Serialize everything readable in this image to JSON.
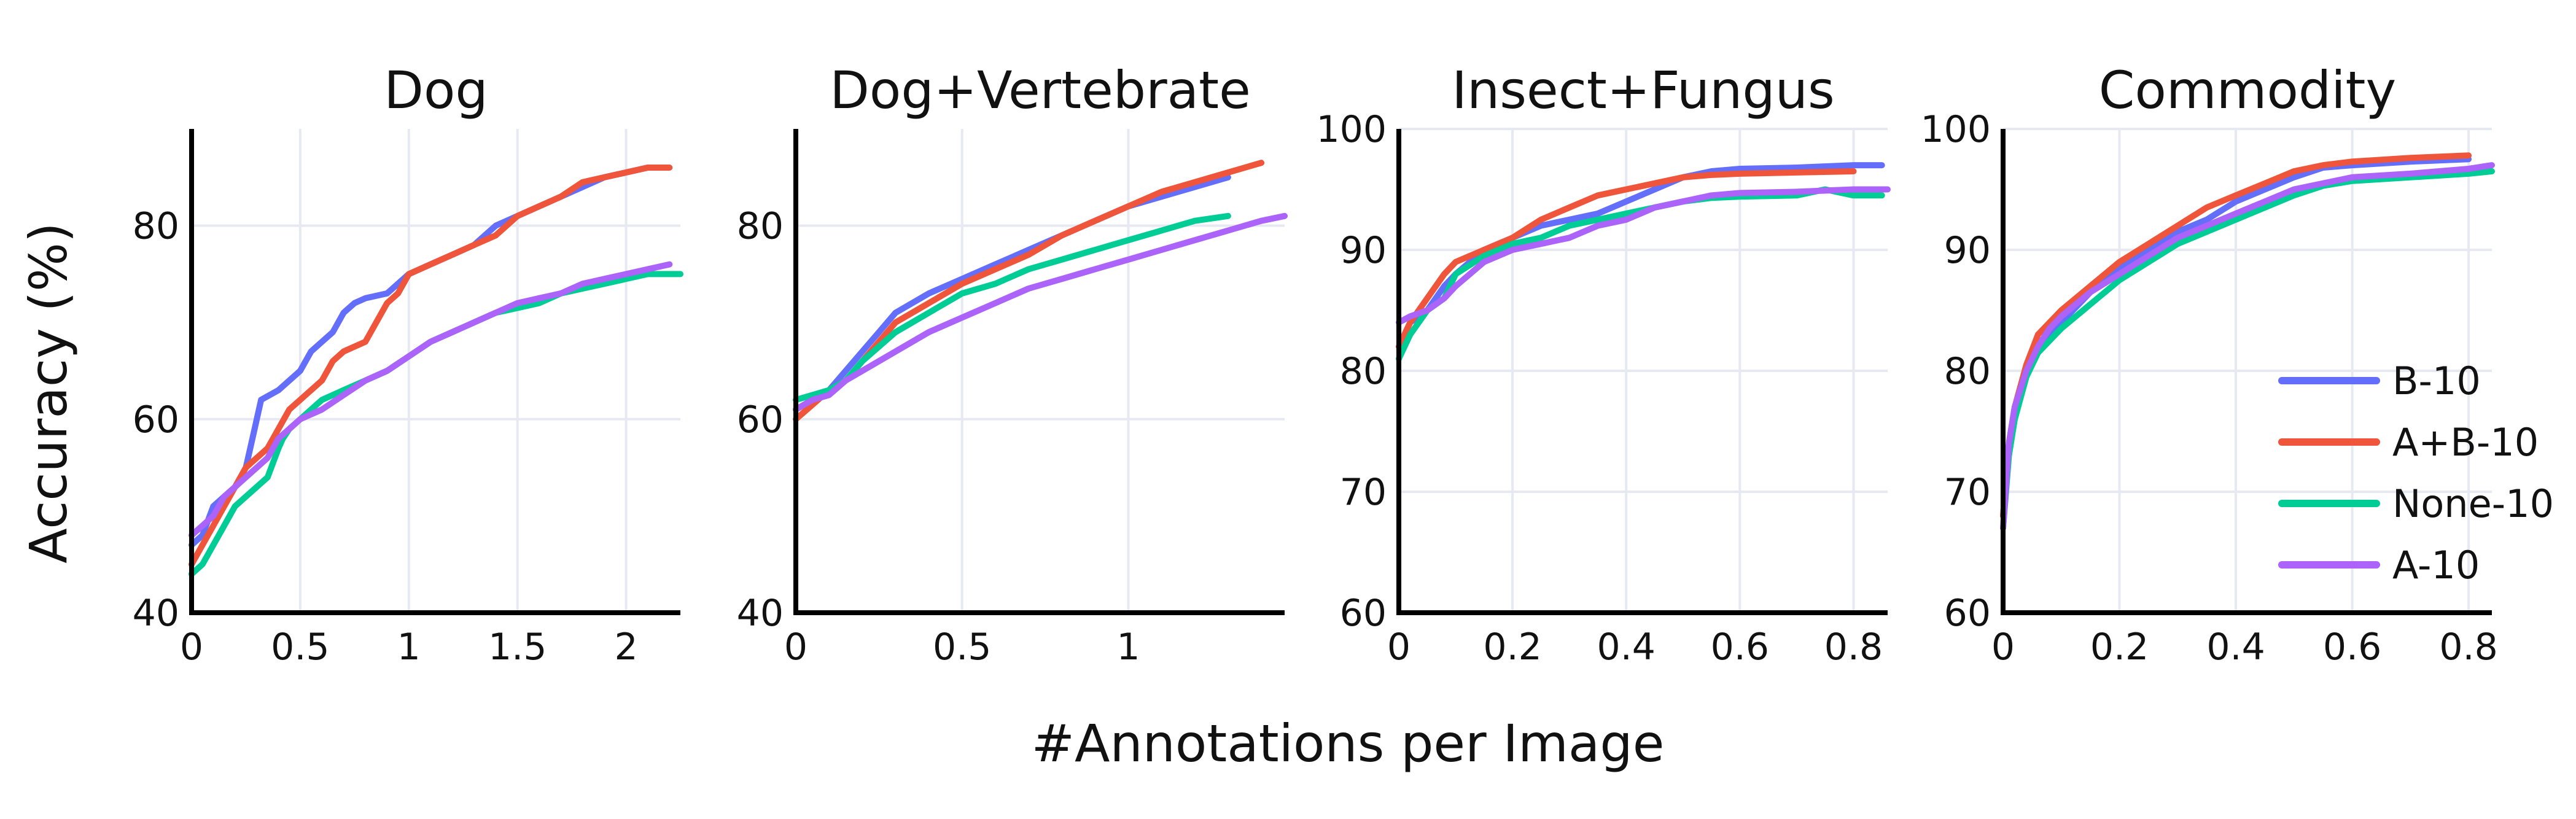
{
  "figure": {
    "ylabel": "Accuracy (%)",
    "xlabel": "#Annotations per Image"
  },
  "colors": {
    "B-10": "#636efa",
    "A+B-10": "#ef553b",
    "None-10": "#00cc96",
    "A-10": "#ab63fa"
  },
  "legend": {
    "placement": "bottom-right of Commodity panel",
    "entries": [
      "B-10",
      "A+B-10",
      "None-10",
      "A-10"
    ]
  },
  "chart_data": [
    {
      "type": "line",
      "title": "Dog",
      "xlim": [
        0,
        2.25
      ],
      "ylim": [
        40,
        90
      ],
      "xticks": [
        0,
        0.5,
        1,
        1.5,
        2
      ],
      "xtick_labels": [
        "0",
        "0.5",
        "1",
        "1.5",
        "2"
      ],
      "yticks": [
        40,
        60,
        80
      ],
      "ytick_labels": [
        "40",
        "60",
        "80"
      ],
      "grid": true,
      "series": [
        {
          "name": "B-10",
          "x": [
            0,
            0.05,
            0.1,
            0.15,
            0.2,
            0.25,
            0.28,
            0.32,
            0.4,
            0.45,
            0.5,
            0.55,
            0.6,
            0.65,
            0.7,
            0.75,
            0.8,
            0.9,
            1.0,
            1.1,
            1.2,
            1.3,
            1.4,
            1.5,
            1.6,
            1.7,
            1.8,
            1.9,
            2.0,
            2.1,
            2.18
          ],
          "y": [
            47,
            48,
            51,
            52,
            53,
            55,
            58,
            62,
            63,
            64,
            65,
            67,
            68,
            69,
            71,
            72,
            72.5,
            73,
            75,
            76,
            77,
            78,
            80,
            81,
            82,
            83,
            84,
            85,
            85.5,
            86,
            86
          ]
        },
        {
          "name": "A+B-10",
          "x": [
            0,
            0.05,
            0.1,
            0.15,
            0.2,
            0.25,
            0.3,
            0.35,
            0.4,
            0.45,
            0.5,
            0.55,
            0.6,
            0.65,
            0.7,
            0.75,
            0.8,
            0.85,
            0.9,
            0.95,
            1.0,
            1.1,
            1.2,
            1.3,
            1.4,
            1.5,
            1.6,
            1.7,
            1.8,
            1.9,
            2.0,
            2.1,
            2.2
          ],
          "y": [
            45,
            47,
            49,
            51,
            53,
            55,
            56,
            57,
            59,
            61,
            62,
            63,
            64,
            66,
            67,
            67.5,
            68,
            70,
            72,
            73,
            75,
            76,
            77,
            78,
            79,
            81,
            82,
            83,
            84.5,
            85,
            85.5,
            86,
            86
          ]
        },
        {
          "name": "None-10",
          "x": [
            0,
            0.05,
            0.1,
            0.15,
            0.2,
            0.25,
            0.3,
            0.35,
            0.4,
            0.42,
            0.45,
            0.5,
            0.6,
            0.7,
            0.8,
            0.9,
            1.0,
            1.1,
            1.2,
            1.3,
            1.4,
            1.5,
            1.6,
            1.7,
            1.8,
            1.9,
            2.0,
            2.1,
            2.25
          ],
          "y": [
            44,
            45,
            47,
            49,
            51,
            52,
            53,
            54,
            57,
            58,
            59,
            60,
            62,
            63,
            64,
            65,
            66.5,
            68,
            69,
            70,
            71,
            71.5,
            72,
            73,
            73.5,
            74,
            74.5,
            75,
            75
          ]
        },
        {
          "name": "A-10",
          "x": [
            0,
            0.05,
            0.1,
            0.15,
            0.2,
            0.25,
            0.3,
            0.35,
            0.4,
            0.45,
            0.5,
            0.6,
            0.7,
            0.8,
            0.9,
            1.0,
            1.1,
            1.2,
            1.3,
            1.4,
            1.5,
            1.6,
            1.7,
            1.8,
            1.9,
            2.0,
            2.1,
            2.2
          ],
          "y": [
            48,
            49,
            50,
            52,
            53,
            54,
            55,
            56,
            58,
            59,
            60,
            61,
            62.5,
            64,
            65,
            66.5,
            68,
            69,
            70,
            71,
            72,
            72.5,
            73,
            74,
            74.5,
            75,
            75.5,
            76
          ]
        }
      ]
    },
    {
      "type": "line",
      "title": "Dog+Vertebrate",
      "xlim": [
        0,
        1.47
      ],
      "ylim": [
        40,
        90
      ],
      "xticks": [
        0,
        0.5,
        1
      ],
      "xtick_labels": [
        "0",
        "0.5",
        "1"
      ],
      "yticks": [
        40,
        60,
        80
      ],
      "ytick_labels": [
        "40",
        "60",
        "80"
      ],
      "grid": true,
      "series": [
        {
          "name": "B-10",
          "x": [
            0,
            0.05,
            0.1,
            0.15,
            0.2,
            0.25,
            0.3,
            0.4,
            0.5,
            0.6,
            0.7,
            0.8,
            0.9,
            1.0,
            1.1,
            1.2,
            1.3
          ],
          "y": [
            61,
            62,
            63,
            65,
            67,
            69,
            71,
            73,
            74.5,
            76,
            77.5,
            79,
            80.5,
            82,
            83,
            84,
            85
          ]
        },
        {
          "name": "A+B-10",
          "x": [
            0,
            0.05,
            0.1,
            0.15,
            0.2,
            0.25,
            0.3,
            0.4,
            0.5,
            0.6,
            0.7,
            0.8,
            0.9,
            1.0,
            1.1,
            1.2,
            1.3,
            1.4
          ],
          "y": [
            60,
            61.5,
            63,
            64,
            66,
            68,
            70,
            72,
            74,
            75.5,
            77,
            79,
            80.5,
            82,
            83.5,
            84.5,
            85.5,
            86.5
          ]
        },
        {
          "name": "None-10",
          "x": [
            0,
            0.05,
            0.1,
            0.15,
            0.2,
            0.3,
            0.4,
            0.5,
            0.6,
            0.7,
            0.8,
            0.9,
            1.0,
            1.1,
            1.2,
            1.3
          ],
          "y": [
            62,
            62.5,
            63,
            64,
            66,
            69,
            71,
            73,
            74,
            75.5,
            76.5,
            77.5,
            78.5,
            79.5,
            80.5,
            81
          ]
        },
        {
          "name": "A-10",
          "x": [
            0,
            0.05,
            0.1,
            0.15,
            0.2,
            0.3,
            0.4,
            0.5,
            0.6,
            0.7,
            0.8,
            0.9,
            1.0,
            1.1,
            1.2,
            1.3,
            1.4,
            1.47
          ],
          "y": [
            61,
            62,
            62.5,
            64,
            65,
            67,
            69,
            70.5,
            72,
            73.5,
            74.5,
            75.5,
            76.5,
            77.5,
            78.5,
            79.5,
            80.5,
            81
          ]
        }
      ]
    },
    {
      "type": "line",
      "title": "Insect+Fungus",
      "xlim": [
        0,
        0.86
      ],
      "ylim": [
        60,
        100
      ],
      "xticks": [
        0,
        0.2,
        0.4,
        0.6,
        0.8
      ],
      "xtick_labels": [
        "0",
        "0.2",
        "0.4",
        "0.6",
        "0.8"
      ],
      "yticks": [
        60,
        70,
        80,
        90,
        100
      ],
      "ytick_labels": [
        "60",
        "70",
        "80",
        "90",
        "100"
      ],
      "grid": true,
      "series": [
        {
          "name": "B-10",
          "x": [
            0,
            0.02,
            0.05,
            0.08,
            0.1,
            0.15,
            0.2,
            0.25,
            0.3,
            0.35,
            0.4,
            0.45,
            0.5,
            0.55,
            0.6,
            0.7,
            0.8,
            0.85
          ],
          "y": [
            82,
            84,
            85,
            87,
            88,
            90,
            91,
            92,
            92.5,
            93,
            94,
            95,
            96,
            96.5,
            96.7,
            96.8,
            97,
            97
          ]
        },
        {
          "name": "A+B-10",
          "x": [
            0,
            0.02,
            0.05,
            0.08,
            0.1,
            0.15,
            0.2,
            0.25,
            0.3,
            0.35,
            0.4,
            0.45,
            0.5,
            0.55,
            0.6,
            0.7,
            0.8
          ],
          "y": [
            82,
            84,
            86,
            88,
            89,
            90,
            91,
            92.5,
            93.5,
            94.5,
            95,
            95.5,
            96,
            96.2,
            96.3,
            96.4,
            96.5
          ]
        },
        {
          "name": "None-10",
          "x": [
            0,
            0.02,
            0.05,
            0.08,
            0.1,
            0.15,
            0.2,
            0.25,
            0.3,
            0.35,
            0.4,
            0.45,
            0.5,
            0.55,
            0.6,
            0.7,
            0.75,
            0.8,
            0.85
          ],
          "y": [
            81,
            83,
            85,
            86,
            88,
            89.5,
            90.5,
            91,
            92,
            92.5,
            93,
            93.5,
            94,
            94.3,
            94.4,
            94.5,
            95,
            94.5,
            94.5
          ]
        },
        {
          "name": "A-10",
          "x": [
            0,
            0.02,
            0.05,
            0.08,
            0.1,
            0.15,
            0.2,
            0.25,
            0.3,
            0.35,
            0.4,
            0.45,
            0.5,
            0.55,
            0.6,
            0.7,
            0.8,
            0.86
          ],
          "y": [
            84,
            84.5,
            85,
            86,
            87,
            89,
            90,
            90.5,
            91,
            92,
            92.5,
            93.5,
            94,
            94.5,
            94.7,
            94.8,
            95,
            95
          ]
        }
      ]
    },
    {
      "type": "line",
      "title": "Commodity",
      "xlim": [
        0,
        0.84
      ],
      "ylim": [
        60,
        100
      ],
      "xticks": [
        0,
        0.2,
        0.4,
        0.6,
        0.8
      ],
      "xtick_labels": [
        "0",
        "0.2",
        "0.4",
        "0.6",
        "0.8"
      ],
      "yticks": [
        60,
        70,
        80,
        90,
        100
      ],
      "ytick_labels": [
        "60",
        "70",
        "80",
        "90",
        "100"
      ],
      "grid": true,
      "series": [
        {
          "name": "B-10",
          "x": [
            0,
            0.01,
            0.02,
            0.04,
            0.06,
            0.08,
            0.1,
            0.15,
            0.2,
            0.25,
            0.3,
            0.35,
            0.4,
            0.45,
            0.5,
            0.55,
            0.6,
            0.7,
            0.8
          ],
          "y": [
            68,
            74,
            77,
            80,
            82,
            83,
            84,
            86.5,
            88.5,
            90,
            91.5,
            92.5,
            94,
            95,
            96,
            96.8,
            97,
            97.3,
            97.5
          ]
        },
        {
          "name": "A+B-10",
          "x": [
            0,
            0.01,
            0.02,
            0.04,
            0.06,
            0.08,
            0.1,
            0.15,
            0.2,
            0.25,
            0.3,
            0.35,
            0.4,
            0.45,
            0.5,
            0.55,
            0.6,
            0.7,
            0.8
          ],
          "y": [
            68,
            74,
            77,
            80.5,
            83,
            84,
            85,
            87,
            89,
            90.5,
            92,
            93.5,
            94.5,
            95.5,
            96.5,
            97,
            97.3,
            97.6,
            97.8
          ]
        },
        {
          "name": "None-10",
          "x": [
            0,
            0.01,
            0.02,
            0.04,
            0.06,
            0.08,
            0.1,
            0.15,
            0.2,
            0.25,
            0.3,
            0.35,
            0.4,
            0.45,
            0.5,
            0.55,
            0.6,
            0.7,
            0.8,
            0.84
          ],
          "y": [
            67,
            73,
            76,
            79.5,
            81.5,
            82.5,
            83.5,
            85.5,
            87.5,
            89,
            90.5,
            91.5,
            92.5,
            93.5,
            94.5,
            95.3,
            95.7,
            96,
            96.3,
            96.5
          ]
        },
        {
          "name": "A-10",
          "x": [
            0,
            0.01,
            0.02,
            0.04,
            0.06,
            0.08,
            0.1,
            0.15,
            0.2,
            0.25,
            0.3,
            0.35,
            0.4,
            0.45,
            0.5,
            0.55,
            0.6,
            0.7,
            0.8,
            0.84
          ],
          "y": [
            67,
            74,
            77,
            80,
            82,
            83.5,
            84.5,
            86.5,
            88,
            89.5,
            91,
            92,
            93,
            94,
            95,
            95.5,
            96,
            96.3,
            96.7,
            97
          ]
        }
      ]
    }
  ]
}
